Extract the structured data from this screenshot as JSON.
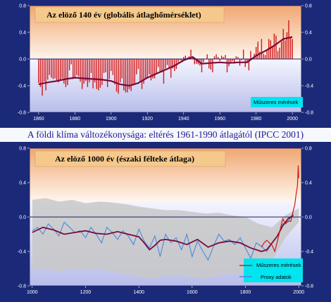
{
  "caption": "A földi klíma változékonysága: eltérés 1961-1990 átlagától  (IPCC 2001)",
  "colors": {
    "page_bg": "#1b2a78",
    "panel_bg": "#ffffff",
    "warm_tint": "#f3b98a",
    "cool_tint": "#c9cdf0",
    "title_box": "#f5c98c",
    "legend_box": "#00e5f0",
    "caption_bg": "#ffffff",
    "instrumental": "#d11a1a",
    "smoothed": "#7a0a3a",
    "proxy": "#4a8ad8",
    "uncertainty": "#c8c8c8",
    "zero_line": "#1a1a6a"
  },
  "chart_data": [
    {
      "type": "bar",
      "title": "Az elöző 140 év (globális átlaghőmérséklet)",
      "xlim": [
        1855,
        2005
      ],
      "ylim": [
        -0.8,
        0.8
      ],
      "xticks": [
        1860,
        1880,
        1900,
        1920,
        1940,
        1960,
        1980,
        2000
      ],
      "yticks": [
        "-0.8",
        "-0.4",
        "0.0",
        "0.4",
        "0.8"
      ],
      "legend": [
        "Műszeres mérések"
      ],
      "series": [
        {
          "name": "Műszeres mérések",
          "style": "annual bars",
          "x": [
            1860,
            1861,
            1862,
            1863,
            1864,
            1865,
            1866,
            1867,
            1868,
            1869,
            1870,
            1871,
            1872,
            1873,
            1874,
            1875,
            1876,
            1877,
            1878,
            1879,
            1880,
            1881,
            1882,
            1883,
            1884,
            1885,
            1886,
            1887,
            1888,
            1889,
            1890,
            1891,
            1892,
            1893,
            1894,
            1895,
            1896,
            1897,
            1898,
            1899,
            1900,
            1901,
            1902,
            1903,
            1904,
            1905,
            1906,
            1907,
            1908,
            1909,
            1910,
            1911,
            1912,
            1913,
            1914,
            1915,
            1916,
            1917,
            1918,
            1919,
            1920,
            1921,
            1922,
            1923,
            1924,
            1925,
            1926,
            1927,
            1928,
            1929,
            1930,
            1931,
            1932,
            1933,
            1934,
            1935,
            1936,
            1937,
            1938,
            1939,
            1940,
            1941,
            1942,
            1943,
            1944,
            1945,
            1946,
            1947,
            1948,
            1949,
            1950,
            1951,
            1952,
            1953,
            1954,
            1955,
            1956,
            1957,
            1958,
            1959,
            1960,
            1961,
            1962,
            1963,
            1964,
            1965,
            1966,
            1967,
            1968,
            1969,
            1970,
            1971,
            1972,
            1973,
            1974,
            1975,
            1976,
            1977,
            1978,
            1979,
            1980,
            1981,
            1982,
            1983,
            1984,
            1985,
            1986,
            1987,
            1988,
            1989,
            1990,
            1991,
            1992,
            1993,
            1994,
            1995,
            1996,
            1997,
            1998,
            1999,
            2000
          ],
          "values": [
            -0.36,
            -0.42,
            -0.55,
            -0.34,
            -0.47,
            -0.31,
            -0.24,
            -0.28,
            -0.3,
            -0.29,
            -0.32,
            -0.35,
            -0.31,
            -0.29,
            -0.37,
            -0.42,
            -0.39,
            -0.17,
            -0.08,
            -0.3,
            -0.27,
            -0.24,
            -0.26,
            -0.34,
            -0.45,
            -0.37,
            -0.33,
            -0.42,
            -0.35,
            -0.21,
            -0.44,
            -0.35,
            -0.45,
            -0.47,
            -0.43,
            -0.39,
            -0.21,
            -0.2,
            -0.42,
            -0.3,
            -0.18,
            -0.24,
            -0.38,
            -0.49,
            -0.52,
            -0.35,
            -0.29,
            -0.47,
            -0.5,
            -0.5,
            -0.45,
            -0.48,
            -0.4,
            -0.39,
            -0.23,
            -0.15,
            -0.33,
            -0.45,
            -0.37,
            -0.3,
            -0.29,
            -0.23,
            -0.32,
            -0.29,
            -0.29,
            -0.22,
            -0.12,
            -0.2,
            -0.2,
            -0.37,
            -0.14,
            -0.09,
            -0.15,
            -0.28,
            -0.14,
            -0.18,
            -0.15,
            -0.05,
            -0.02,
            -0.05,
            0.03,
            0.05,
            0.02,
            0.04,
            0.14,
            0.03,
            -0.08,
            -0.07,
            -0.08,
            -0.1,
            -0.2,
            -0.05,
            0.0,
            0.07,
            -0.14,
            -0.16,
            -0.2,
            0.04,
            0.07,
            0.03,
            -0.03,
            0.05,
            0.03,
            0.06,
            -0.2,
            -0.11,
            -0.06,
            -0.03,
            -0.07,
            0.04,
            0.03,
            -0.1,
            -0.02,
            0.14,
            -0.12,
            -0.05,
            -0.17,
            0.12,
            0.01,
            0.08,
            0.18,
            0.26,
            0.11,
            0.3,
            0.08,
            0.06,
            0.14,
            0.3,
            0.28,
            0.2,
            0.38,
            0.35,
            0.12,
            0.17,
            0.26,
            0.45,
            0.28,
            0.4,
            0.58,
            0.33,
            0.3
          ]
        },
        {
          "name": "",
          "style": "smoothed curve",
          "x": [
            1860,
            1865,
            1870,
            1875,
            1880,
            1885,
            1890,
            1895,
            1900,
            1905,
            1910,
            1915,
            1920,
            1925,
            1930,
            1935,
            1940,
            1945,
            1950,
            1955,
            1960,
            1965,
            1970,
            1975,
            1980,
            1985,
            1990,
            1995,
            2000
          ],
          "values": [
            -0.38,
            -0.35,
            -0.33,
            -0.3,
            -0.28,
            -0.29,
            -0.3,
            -0.31,
            -0.33,
            -0.38,
            -0.4,
            -0.36,
            -0.28,
            -0.22,
            -0.16,
            -0.1,
            -0.02,
            0.03,
            -0.07,
            -0.06,
            -0.05,
            -0.06,
            -0.05,
            -0.05,
            0.05,
            0.12,
            0.2,
            0.3,
            0.33
          ]
        }
      ]
    },
    {
      "type": "line",
      "title": "Az elöző 1000 év (északi félteke átlaga)",
      "xlim": [
        990,
        2010
      ],
      "ylim": [
        -0.8,
        0.8
      ],
      "xticks": [
        1000,
        1200,
        1400,
        1600,
        1800,
        2000
      ],
      "yticks": [
        "-0.8",
        "-0.4",
        "0.0",
        "0.4",
        "0.8"
      ],
      "legend": [
        "Műszeres mérések",
        "Proxy adatok"
      ],
      "series": [
        {
          "name": "Proxy adatok",
          "x": [
            1000,
            1020,
            1040,
            1060,
            1080,
            1100,
            1120,
            1140,
            1160,
            1180,
            1200,
            1220,
            1240,
            1260,
            1280,
            1300,
            1320,
            1340,
            1360,
            1380,
            1400,
            1420,
            1440,
            1460,
            1480,
            1500,
            1520,
            1540,
            1560,
            1580,
            1600,
            1620,
            1640,
            1660,
            1680,
            1700,
            1720,
            1740,
            1760,
            1780,
            1800,
            1820,
            1840,
            1860,
            1880,
            1900,
            1920,
            1940,
            1960,
            1980
          ],
          "values": [
            -0.16,
            -0.12,
            -0.2,
            -0.08,
            -0.14,
            -0.22,
            -0.06,
            -0.12,
            -0.18,
            -0.16,
            -0.24,
            -0.12,
            -0.2,
            -0.3,
            -0.12,
            -0.18,
            -0.26,
            -0.16,
            -0.22,
            -0.32,
            -0.14,
            -0.28,
            -0.36,
            -0.22,
            -0.46,
            -0.2,
            -0.3,
            -0.24,
            -0.38,
            -0.2,
            -0.46,
            -0.28,
            -0.4,
            -0.5,
            -0.34,
            -0.2,
            -0.28,
            -0.26,
            -0.32,
            -0.24,
            -0.36,
            -0.48,
            -0.3,
            -0.34,
            -0.4,
            -0.3,
            -0.22,
            -0.08,
            -0.05,
            0.04
          ]
        },
        {
          "name": "",
          "style": "smoothed curve",
          "x": [
            1000,
            1040,
            1080,
            1120,
            1160,
            1200,
            1240,
            1280,
            1320,
            1360,
            1400,
            1420,
            1440,
            1460,
            1480,
            1500,
            1540,
            1580,
            1620,
            1660,
            1700,
            1740,
            1780,
            1820,
            1860,
            1880,
            1900,
            1920,
            1940,
            1960,
            1980
          ],
          "values": [
            -0.18,
            -0.12,
            -0.15,
            -0.2,
            -0.18,
            -0.16,
            -0.19,
            -0.2,
            -0.17,
            -0.2,
            -0.23,
            -0.3,
            -0.38,
            -0.33,
            -0.27,
            -0.26,
            -0.28,
            -0.32,
            -0.26,
            -0.35,
            -0.3,
            -0.28,
            -0.3,
            -0.36,
            -0.4,
            -0.38,
            -0.3,
            -0.22,
            -0.1,
            -0.02,
            0.02
          ]
        },
        {
          "name": "Műszeres mérések",
          "x": [
            1860,
            1870,
            1880,
            1890,
            1900,
            1910,
            1920,
            1930,
            1940,
            1950,
            1960,
            1970,
            1980,
            1985,
            1990,
            1995,
            1998,
            2000
          ],
          "values": [
            -0.35,
            -0.3,
            -0.27,
            -0.3,
            -0.33,
            -0.4,
            -0.28,
            -0.15,
            -0.02,
            -0.08,
            -0.05,
            -0.05,
            0.08,
            0.14,
            0.26,
            0.36,
            0.6,
            0.45
          ]
        },
        {
          "name": "",
          "style": "uncertainty band",
          "x": [
            1000,
            1050,
            1100,
            1150,
            1200,
            1250,
            1300,
            1350,
            1400,
            1450,
            1500,
            1550,
            1600,
            1650,
            1700,
            1750,
            1800,
            1850,
            1900,
            1950,
            2000
          ],
          "upper": [
            0.2,
            0.22,
            0.18,
            0.2,
            0.16,
            0.18,
            0.17,
            0.15,
            0.12,
            0.1,
            0.08,
            0.08,
            0.06,
            0.04,
            0.05,
            0.02,
            0.0,
            -0.08,
            -0.12,
            0.02,
            0.1
          ],
          "lower": [
            -0.62,
            -0.6,
            -0.64,
            -0.6,
            -0.62,
            -0.6,
            -0.64,
            -0.66,
            -0.7,
            -0.72,
            -0.68,
            -0.68,
            -0.7,
            -0.72,
            -0.68,
            -0.66,
            -0.66,
            -0.62,
            -0.5,
            -0.24,
            -0.06
          ]
        }
      ]
    }
  ]
}
